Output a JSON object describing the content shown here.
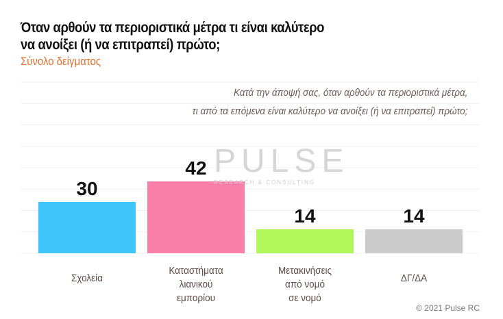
{
  "header": {
    "title_line1": "Όταν αρθούν τα περιοριστικά μέτρα τι είναι καλύτερο",
    "title_line2": "να ανοίξει (ή να επιτραπεί) πρώτο;",
    "subtitle": "Σύνολο δείγματος",
    "question_line1": "Κατά την άποψή σας, όταν αρθούν τα περιοριστικά μέτρα,",
    "question_line2": "τι από τα επόμενα είναι καλύτερο να ανοίξει (ή να επιτραπεί) πρώτο;"
  },
  "watermark": {
    "name": "PULSE",
    "tagline": "RESEARCH & CONSULTING"
  },
  "footer": {
    "copyright": "© 2021 Pulse RC"
  },
  "chart_data": {
    "type": "bar",
    "categories": [
      "Σχολεία",
      "Καταστήματα λιανικού εμπορίου",
      "Μετακινήσεις από νομό σε νομό",
      "ΔΓ/ΔΑ"
    ],
    "category_lines": [
      [
        "Σχολεία"
      ],
      [
        "Καταστήματα",
        "λιανικού",
        "εμπορίου"
      ],
      [
        "Μετακινήσεις",
        "από νομό",
        "σε νομό"
      ],
      [
        "ΔΓ/ΔΑ"
      ]
    ],
    "values": [
      30,
      42,
      14,
      14
    ],
    "data_labels": [
      "30",
      "42",
      "14",
      "14"
    ],
    "colors": [
      "#3ec6fb",
      "#fc7fa9",
      "#b0f75a",
      "#cccccc"
    ],
    "ylim": [
      0,
      100
    ],
    "grid": true,
    "legend": "none"
  }
}
